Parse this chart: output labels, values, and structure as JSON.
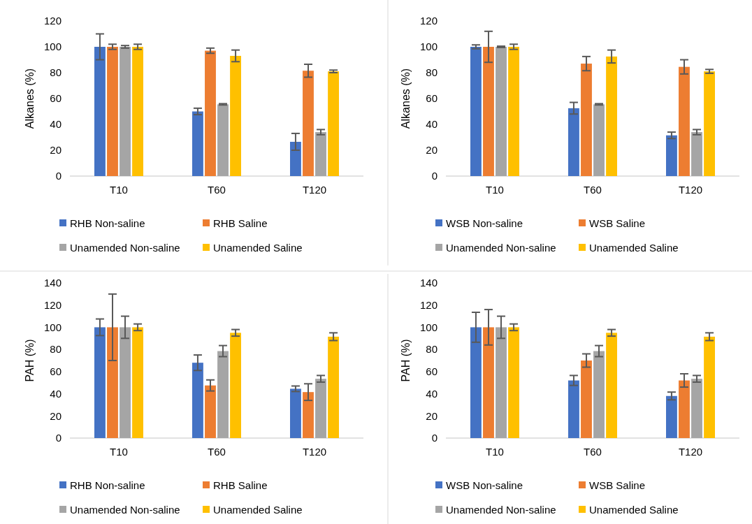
{
  "chart_data": [
    {
      "type": "bar",
      "ylabel": "Alkanes (%)",
      "categories": [
        "T10",
        "T60",
        "T120"
      ],
      "ylim": [
        0,
        120
      ],
      "yticks": [
        0,
        20,
        40,
        60,
        80,
        100,
        120
      ],
      "legend": "bottom",
      "series": [
        {
          "name": "RHB Non-saline",
          "color": "#4472c4",
          "values": [
            100,
            50,
            26.5
          ],
          "errors": [
            10,
            2.5,
            6.5
          ]
        },
        {
          "name": "RHB Saline",
          "color": "#ed7d31",
          "values": [
            100,
            97,
            81.5
          ],
          "errors": [
            2,
            2,
            5
          ]
        },
        {
          "name": "Unamended Non-saline",
          "color": "#a5a5a5",
          "values": [
            100,
            55.5,
            34
          ],
          "errors": [
            1,
            0.5,
            2
          ]
        },
        {
          "name": "Unamended Saline",
          "color": "#ffc000",
          "values": [
            100,
            93,
            81
          ],
          "errors": [
            2,
            4.5,
            1
          ]
        }
      ]
    },
    {
      "type": "bar",
      "ylabel": "Alkanes (%)",
      "categories": [
        "T10",
        "T60",
        "T120"
      ],
      "ylim": [
        0,
        120
      ],
      "yticks": [
        0,
        20,
        40,
        60,
        80,
        100,
        120
      ],
      "legend": "bottom",
      "series": [
        {
          "name": "WSB Non-saline",
          "color": "#4472c4",
          "values": [
            100,
            52.5,
            31.5
          ],
          "errors": [
            1.5,
            4.5,
            2.5
          ]
        },
        {
          "name": "WSB Saline",
          "color": "#ed7d31",
          "values": [
            100,
            87,
            84.5
          ],
          "errors": [
            12,
            5.5,
            5.5
          ]
        },
        {
          "name": "Unamended Non-saline",
          "color": "#a5a5a5",
          "values": [
            100,
            55.5,
            34
          ],
          "errors": [
            0.5,
            0.5,
            2
          ]
        },
        {
          "name": "Unamended Saline",
          "color": "#ffc000",
          "values": [
            100,
            92.5,
            81
          ],
          "errors": [
            2,
            5,
            1.5
          ]
        }
      ]
    },
    {
      "type": "bar",
      "ylabel": "PAH (%)",
      "categories": [
        "T10",
        "T60",
        "T120"
      ],
      "ylim": [
        0,
        140
      ],
      "yticks": [
        0,
        20,
        40,
        60,
        80,
        100,
        120,
        140
      ],
      "legend": "bottom",
      "series": [
        {
          "name": "RHB Non-saline",
          "color": "#4472c4",
          "values": [
            100,
            68,
            44.5
          ],
          "errors": [
            7.5,
            7,
            2.5
          ]
        },
        {
          "name": "RHB Saline",
          "color": "#ed7d31",
          "values": [
            100,
            47.5,
            41.5
          ],
          "errors": [
            30,
            5,
            7.5
          ]
        },
        {
          "name": "Unamended Non-saline",
          "color": "#a5a5a5",
          "values": [
            100,
            78.5,
            53.5
          ],
          "errors": [
            10,
            5,
            3
          ]
        },
        {
          "name": "Unamended Saline",
          "color": "#ffc000",
          "values": [
            100,
            95,
            91.5
          ],
          "errors": [
            3,
            3,
            3.5
          ]
        }
      ]
    },
    {
      "type": "bar",
      "ylabel": "PAH (%)",
      "categories": [
        "T10",
        "T60",
        "T120"
      ],
      "ylim": [
        0,
        140
      ],
      "yticks": [
        0,
        20,
        40,
        60,
        80,
        100,
        120,
        140
      ],
      "legend": "bottom",
      "series": [
        {
          "name": "WSB Non-saline",
          "color": "#4472c4",
          "values": [
            100,
            52,
            38
          ],
          "errors": [
            13.5,
            4.5,
            3.5
          ]
        },
        {
          "name": "WSB Saline",
          "color": "#ed7d31",
          "values": [
            100,
            70,
            52
          ],
          "errors": [
            16,
            6,
            6
          ]
        },
        {
          "name": "Unamended Non-saline",
          "color": "#a5a5a5",
          "values": [
            100,
            78.5,
            53.5
          ],
          "errors": [
            10,
            5,
            3
          ]
        },
        {
          "name": "Unamended Saline",
          "color": "#ffc000",
          "values": [
            100,
            95,
            91.5
          ],
          "errors": [
            3,
            3,
            3.5
          ]
        }
      ]
    }
  ]
}
